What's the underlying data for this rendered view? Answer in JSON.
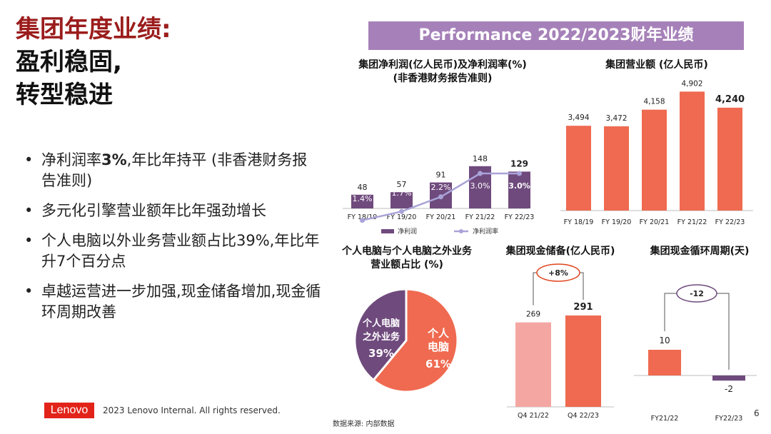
{
  "title": {
    "line1": "集团年度业绩:",
    "line2": "盈利稳固,",
    "line3": "转型稳进"
  },
  "bullets": [
    {
      "pre": "净利润率",
      "bold": "3%",
      "post": ",年比年持平 (非香港财务报告准则)"
    },
    {
      "pre": "多元化引擎营业额年比年强劲增长",
      "bold": "",
      "post": ""
    },
    {
      "pre": "个人电脑以外业务营业额占比39%,年比年升7个百分点",
      "bold": "",
      "post": ""
    },
    {
      "pre": "卓越运营进一步加强,现金储备增加,现金循环周期改善",
      "bold": "",
      "post": ""
    }
  ],
  "banner": "Performance 2022/2023财年业绩",
  "footer": {
    "logo": "Lenovo",
    "copyright": "2023 Lenovo Internal. All rights reserved.",
    "source": "数据来源: 内部数据",
    "page": "6"
  },
  "colors": {
    "purple": "#6f4a7d",
    "lavender": "#a9a3d8",
    "coral": "#ef6a50",
    "pink": "#f4a7a2",
    "banner": "#a681b9",
    "title_red": "#9b1c1c"
  },
  "chart_data": [
    {
      "type": "bar",
      "title_line1": "集团净利润(亿人民币)及净利润率(%)",
      "title_line2": "(非香港财务报告准则)",
      "categories": [
        "FY 18/19",
        "FY 19/20",
        "FY 20/21",
        "FY 21/22",
        "FY 22/23"
      ],
      "series": [
        {
          "name": "净利润",
          "values": [
            48,
            57,
            91,
            148,
            129
          ],
          "labels": [
            "48",
            "57",
            "91",
            "148",
            "129"
          ]
        },
        {
          "name": "净利润率",
          "values": [
            1.4,
            1.7,
            2.2,
            3.0,
            3.0
          ],
          "labels": [
            "1.4%",
            "1.7%",
            "2.2%",
            "3.0%",
            "3.0%"
          ]
        }
      ]
    },
    {
      "type": "bar",
      "title": "集团营业额 (亿人民币)",
      "categories": [
        "FY 18/19",
        "FY 19/20",
        "FY 20/21",
        "FY 21/22",
        "FY 22/23"
      ],
      "values": [
        3494,
        3472,
        4158,
        4902,
        4240
      ],
      "labels": [
        "3,494",
        "3,472",
        "4,158",
        "4,902",
        "4,240"
      ]
    },
    {
      "type": "pie",
      "title_line1": "个人电脑与个人电脑之外业务",
      "title_line2": "营业额占比 (%)",
      "slices": [
        {
          "label_line1": "个人",
          "label_line2": "电脑",
          "value": 61,
          "value_label": "61%"
        },
        {
          "label_line1": "个人电脑",
          "label_line2": "之外业务",
          "value": 39,
          "value_label": "39%"
        }
      ]
    },
    {
      "type": "bar",
      "title": "集团现金储备(亿人民币)",
      "categories": [
        "Q4 21/22",
        "Q4 22/23"
      ],
      "values": [
        269,
        291
      ],
      "labels": [
        "269",
        "291"
      ],
      "change": "+8%"
    },
    {
      "type": "bar",
      "title": "集团现金循环周期(天)",
      "categories": [
        "FY21/22",
        "FY22/23"
      ],
      "values": [
        10,
        -2
      ],
      "labels": [
        "10",
        "-2"
      ],
      "change": "-12"
    }
  ]
}
